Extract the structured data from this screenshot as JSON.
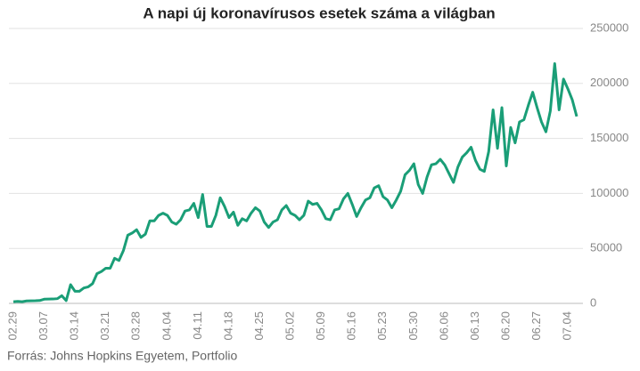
{
  "chart_data": {
    "type": "line",
    "title": "A napi új koronavírusos esetek száma a világban",
    "source": "Forrás: Johns Hopkins Egyetem, Portfolio",
    "color": "#1a9e77",
    "grid": true,
    "ylim": [
      0,
      250000
    ],
    "yticks": [
      0,
      50000,
      100000,
      150000,
      200000,
      250000
    ],
    "categories": [
      "02.29",
      null,
      null,
      null,
      null,
      null,
      null,
      "03.07",
      null,
      null,
      null,
      null,
      null,
      null,
      "03.14",
      null,
      null,
      null,
      null,
      null,
      null,
      "03.21",
      null,
      null,
      null,
      null,
      null,
      null,
      "03.28",
      null,
      null,
      null,
      null,
      null,
      null,
      "04.04",
      null,
      null,
      null,
      null,
      null,
      null,
      "04.11",
      null,
      null,
      null,
      null,
      null,
      null,
      "04.18",
      null,
      null,
      null,
      null,
      null,
      null,
      "04.25",
      null,
      null,
      null,
      null,
      null,
      null,
      "05.02",
      null,
      null,
      null,
      null,
      null,
      null,
      "05.09",
      null,
      null,
      null,
      null,
      null,
      null,
      "05.16",
      null,
      null,
      null,
      null,
      null,
      null,
      "05.23",
      null,
      null,
      null,
      null,
      null,
      null,
      "05.30",
      null,
      null,
      null,
      null,
      null,
      null,
      "06.06",
      null,
      null,
      null,
      null,
      null,
      null,
      "06.13",
      null,
      null,
      null,
      null,
      null,
      null,
      "06.20",
      null,
      null,
      null,
      null,
      null,
      null,
      "06.27",
      null,
      null,
      null,
      null,
      null,
      null,
      "07.04",
      null,
      null
    ],
    "values": [
      1500,
      1800,
      1500,
      2200,
      2300,
      2400,
      2600,
      3800,
      3900,
      4000,
      4300,
      7000,
      2500,
      17000,
      11000,
      11000,
      14000,
      15000,
      18000,
      27000,
      29000,
      32000,
      32000,
      41000,
      39000,
      48000,
      62000,
      64000,
      67000,
      60000,
      63000,
      75000,
      75000,
      80000,
      82000,
      80000,
      74000,
      72000,
      76000,
      84000,
      85000,
      91000,
      78000,
      99000,
      70000,
      70000,
      80000,
      96000,
      88000,
      78000,
      83000,
      71000,
      77000,
      75000,
      82000,
      87000,
      84000,
      74000,
      69000,
      74000,
      76000,
      85000,
      89000,
      82000,
      80000,
      76000,
      80000,
      93000,
      90000,
      91000,
      85000,
      77000,
      76000,
      85000,
      86000,
      95000,
      100000,
      90000,
      79000,
      87000,
      94000,
      96000,
      105000,
      107000,
      97000,
      94000,
      87000,
      94000,
      102000,
      117000,
      121000,
      127000,
      108000,
      100000,
      115000,
      126000,
      127000,
      131000,
      126000,
      118000,
      110000,
      124000,
      133000,
      137000,
      142000,
      130000,
      122000,
      120000,
      138000,
      176000,
      141000,
      178000,
      125000,
      160000,
      146000,
      165000,
      167000,
      180000,
      192000,
      178000,
      165000,
      156000,
      175000,
      218000,
      176000,
      204000,
      195000,
      185000,
      170000
    ]
  }
}
